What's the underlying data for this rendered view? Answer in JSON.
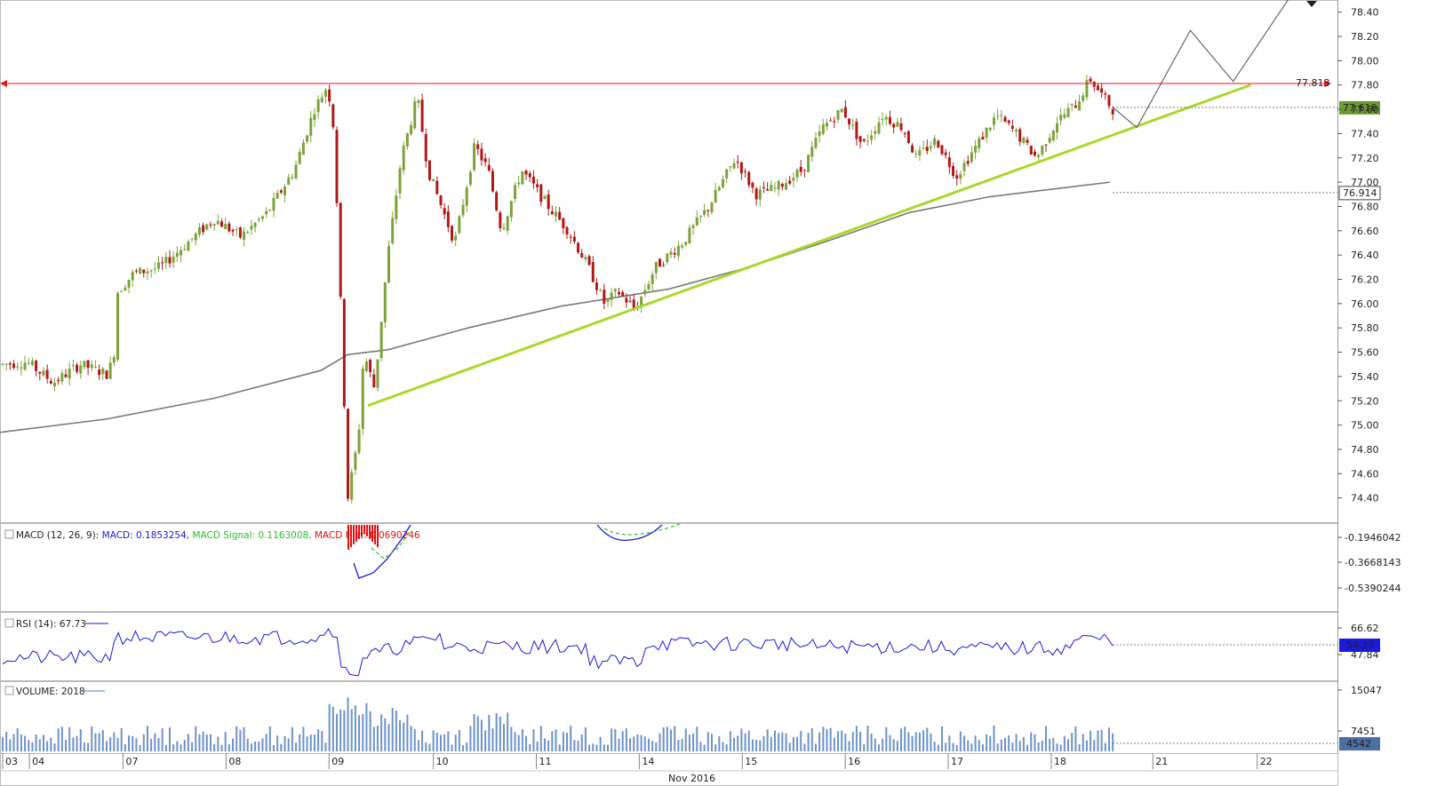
{
  "chart_data": {
    "type": "line",
    "main": {
      "price_axis": {
        "ylim": [
          74.2,
          78.5
        ],
        "ticks": [
          "78.40",
          "78.20",
          "78.00",
          "77.80",
          "77.60",
          "77.40",
          "77.20",
          "77.00",
          "76.80",
          "76.60",
          "76.40",
          "76.20",
          "76.00",
          "75.80",
          "75.60",
          "75.40",
          "75.20",
          "75.00",
          "74.80",
          "74.60",
          "74.40"
        ]
      },
      "resistance_line": {
        "value": 77.813,
        "label": "77.813",
        "color": "#e8141a"
      },
      "last_price": {
        "value": 77.616,
        "label": "77.616",
        "color": "#6b9a32"
      },
      "ma_last": {
        "value": 76.914,
        "label": "76.914"
      },
      "ma_path": [
        [
          0,
          74.94
        ],
        [
          0.08,
          75.05
        ],
        [
          0.16,
          75.22
        ],
        [
          0.24,
          75.45
        ],
        [
          0.26,
          75.58
        ],
        [
          0.29,
          75.62
        ],
        [
          0.35,
          75.8
        ],
        [
          0.42,
          75.98
        ],
        [
          0.5,
          76.12
        ],
        [
          0.56,
          76.3
        ],
        [
          0.62,
          76.52
        ],
        [
          0.68,
          76.75
        ],
        [
          0.74,
          76.88
        ],
        [
          0.8,
          76.96
        ],
        [
          0.83,
          77.0
        ]
      ],
      "trendline": {
        "start": [
          0.275,
          75.16
        ],
        "end": [
          0.935,
          77.8
        ],
        "color": "#a8d82a"
      },
      "projection": [
        [
          0.832,
          77.616
        ],
        [
          0.85,
          77.45
        ],
        [
          0.89,
          78.25
        ],
        [
          0.922,
          77.83
        ],
        [
          0.963,
          78.5
        ]
      ],
      "candles_colors": {
        "up": "#7ba33a",
        "down": "#b01818"
      }
    },
    "x_axis": {
      "labels": [
        "03",
        "04",
        "07",
        "08",
        "09",
        "10",
        "11",
        "14",
        "15",
        "16",
        "17",
        "18",
        "21",
        "22"
      ],
      "month_label": "Nov 2016"
    },
    "macd": {
      "label": "MACD (12, 26, 9):",
      "macd": "MACD: 0.1853254",
      "signal": "MACD Signal: 0.1163008",
      "hist": "MACD Hist: 0.0690246",
      "ticks": [
        "-0.1946042",
        "-0.3668143",
        "-0.5390244"
      ]
    },
    "rsi": {
      "label": "RSI (14): 67.73",
      "ticks": [
        "66.62",
        "47.84"
      ],
      "last": "54.27"
    },
    "volume": {
      "label": "VOLUME: 2018",
      "ticks": [
        "15047",
        "7451"
      ],
      "last": "4542"
    }
  }
}
